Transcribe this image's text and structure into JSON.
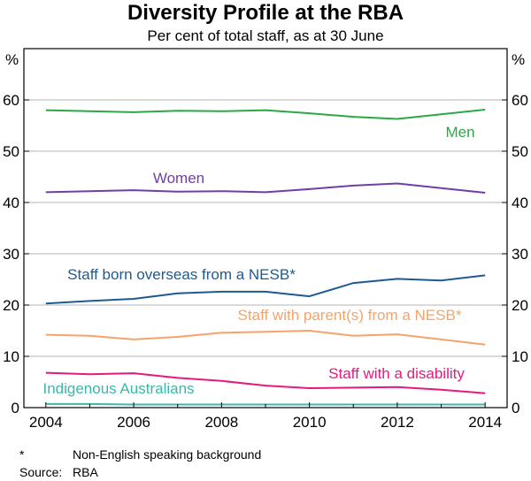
{
  "chart_data": {
    "type": "line",
    "title": "Diversity Profile at the RBA",
    "subtitle": "Per cent of total staff, as at 30 June",
    "ylabel_left": "%",
    "ylabel_right": "%",
    "ylim": [
      0,
      70
    ],
    "yticks": [
      0,
      10,
      20,
      30,
      40,
      50,
      60
    ],
    "xlim": [
      2003.5,
      2014.5
    ],
    "xticks": [
      2004,
      2006,
      2008,
      2010,
      2012,
      2014
    ],
    "grid": true,
    "x": [
      2004,
      2005,
      2006,
      2007,
      2008,
      2009,
      2010,
      2011,
      2012,
      2013,
      2014
    ],
    "series": [
      {
        "name": "Men",
        "color": "#2aa845",
        "values": [
          58.0,
          57.8,
          57.6,
          57.9,
          57.8,
          58.0,
          57.4,
          56.7,
          56.3,
          57.2,
          58.1
        ]
      },
      {
        "name": "Women",
        "color": "#6f3fa6",
        "values": [
          42.0,
          42.2,
          42.4,
          42.1,
          42.2,
          42.0,
          42.6,
          43.3,
          43.7,
          42.8,
          41.9
        ]
      },
      {
        "name": "Staff born overseas from a NESB*",
        "color": "#1e5a92",
        "values": [
          20.3,
          20.8,
          21.2,
          22.3,
          22.6,
          22.6,
          21.7,
          24.3,
          25.1,
          24.8,
          25.8
        ]
      },
      {
        "name": "Staff with parent(s) from a NESB*",
        "color": "#f4a46b",
        "values": [
          14.2,
          14.0,
          13.3,
          13.8,
          14.6,
          14.8,
          15.0,
          14.0,
          14.3,
          13.3,
          12.3
        ]
      },
      {
        "name": "Staff with a disability",
        "color": "#e6197e",
        "values": [
          6.8,
          6.5,
          6.7,
          5.8,
          5.2,
          4.3,
          3.8,
          3.9,
          4.0,
          3.5,
          2.8
        ]
      },
      {
        "name": "Indigenous Australians",
        "color": "#3db7a8",
        "values": [
          0.7,
          0.7,
          0.6,
          0.6,
          0.6,
          0.6,
          0.6,
          0.6,
          0.6,
          0.6,
          0.6
        ]
      }
    ]
  },
  "notes": {
    "footnote_marker": "*",
    "footnote_text": "Non-English speaking background",
    "source_label": "Source:",
    "source_text": "RBA"
  }
}
